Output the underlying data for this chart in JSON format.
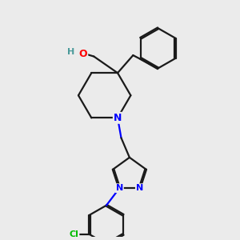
{
  "background_color": "#ebebeb",
  "bond_color": "#1a1a1a",
  "atom_colors": {
    "O": "#ff0000",
    "N": "#0000ff",
    "Cl": "#00bb00",
    "H_label": "#4a9a9a"
  },
  "line_width": 1.6,
  "figsize": [
    3.0,
    3.0
  ],
  "dpi": 100
}
